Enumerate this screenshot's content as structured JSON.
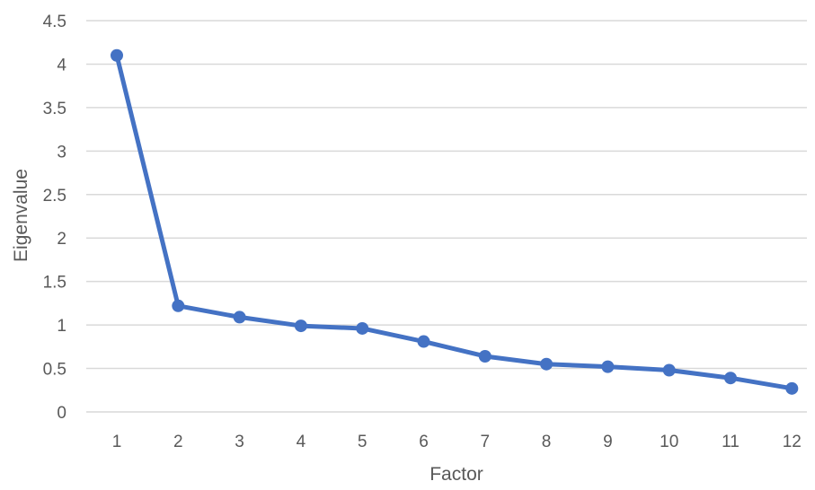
{
  "chart_data": {
    "type": "line",
    "title": "",
    "xlabel": "Factor",
    "ylabel": "Eigenvalue",
    "categories": [
      "1",
      "2",
      "3",
      "4",
      "5",
      "6",
      "7",
      "8",
      "9",
      "10",
      "11",
      "12"
    ],
    "y_ticks": [
      "0",
      "0.5",
      "1",
      "1.5",
      "2",
      "2.5",
      "3",
      "3.5",
      "4",
      "4.5"
    ],
    "ylim": [
      0,
      4.5
    ],
    "grid": true,
    "legend": "none",
    "series": [
      {
        "values": [
          4.1,
          1.22,
          1.09,
          0.99,
          0.96,
          0.81,
          0.64,
          0.55,
          0.52,
          0.48,
          0.39,
          0.27
        ],
        "color": "#4472C4"
      }
    ]
  }
}
